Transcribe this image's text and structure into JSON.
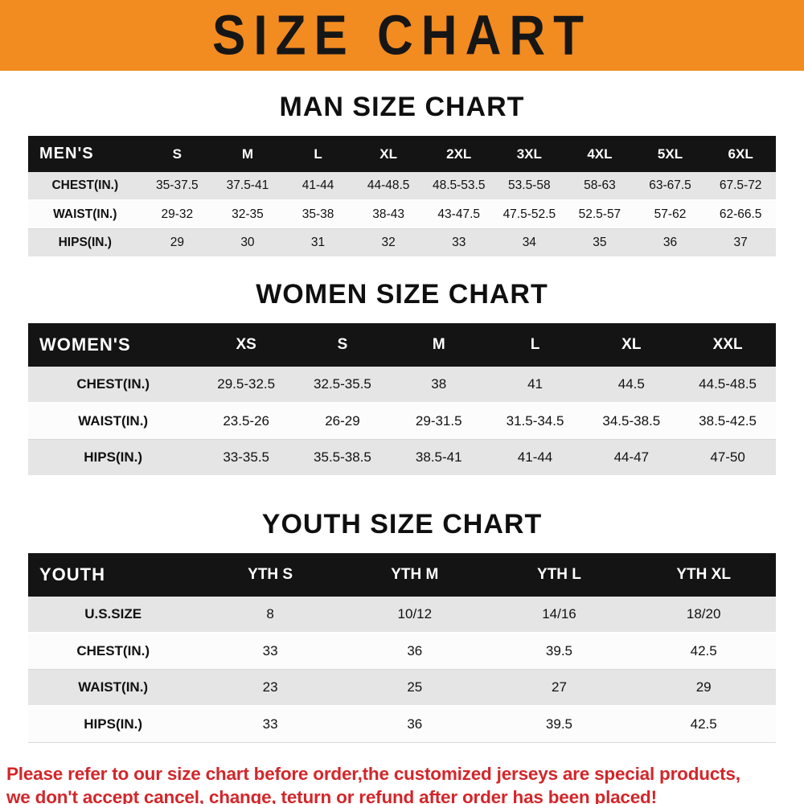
{
  "banner": {
    "title": "SIZE CHART",
    "bg_color": "#f28b20",
    "text_color": "#161616"
  },
  "chart_data": [
    {
      "type": "table",
      "title": "MAN SIZE CHART",
      "columns": [
        "MEN'S",
        "S",
        "M",
        "L",
        "XL",
        "2XL",
        "3XL",
        "4XL",
        "5XL",
        "6XL"
      ],
      "rows": [
        [
          "CHEST(IN.)",
          "35-37.5",
          "37.5-41",
          "41-44",
          "44-48.5",
          "48.5-53.5",
          "53.5-58",
          "58-63",
          "63-67.5",
          "67.5-72"
        ],
        [
          "WAIST(IN.)",
          "29-32",
          "32-35",
          "35-38",
          "38-43",
          "43-47.5",
          "47.5-52.5",
          "52.5-57",
          "57-62",
          "62-66.5"
        ],
        [
          "HIPS(IN.)",
          "29",
          "30",
          "31",
          "32",
          "33",
          "34",
          "35",
          "36",
          "37"
        ]
      ]
    },
    {
      "type": "table",
      "title": "WOMEN SIZE CHART",
      "columns": [
        "WOMEN'S",
        "XS",
        "S",
        "M",
        "L",
        "XL",
        "XXL"
      ],
      "rows": [
        [
          "CHEST(IN.)",
          "29.5-32.5",
          "32.5-35.5",
          "38",
          "41",
          "44.5",
          "44.5-48.5"
        ],
        [
          "WAIST(IN.)",
          "23.5-26",
          "26-29",
          "29-31.5",
          "31.5-34.5",
          "34.5-38.5",
          "38.5-42.5"
        ],
        [
          "HIPS(IN.)",
          "33-35.5",
          "35.5-38.5",
          "38.5-41",
          "41-44",
          "44-47",
          "47-50"
        ]
      ]
    },
    {
      "type": "table",
      "title": "YOUTH SIZE CHART",
      "columns": [
        "YOUTH",
        "YTH S",
        "YTH M",
        "YTH L",
        "YTH XL"
      ],
      "rows": [
        [
          "U.S.SIZE",
          "8",
          "10/12",
          "14/16",
          "18/20"
        ],
        [
          "CHEST(IN.)",
          "33",
          "36",
          "39.5",
          "42.5"
        ],
        [
          "WAIST(IN.)",
          "23",
          "25",
          "27",
          "29"
        ],
        [
          "HIPS(IN.)",
          "33",
          "36",
          "39.5",
          "42.5"
        ]
      ]
    }
  ],
  "footer": {
    "line1": "Please refer to our size chart before order,the customized jerseys are special products,",
    "line2": "we don't accept cancel, change, teturn or refund after order has been placed!",
    "text_color": "#d3262a"
  }
}
